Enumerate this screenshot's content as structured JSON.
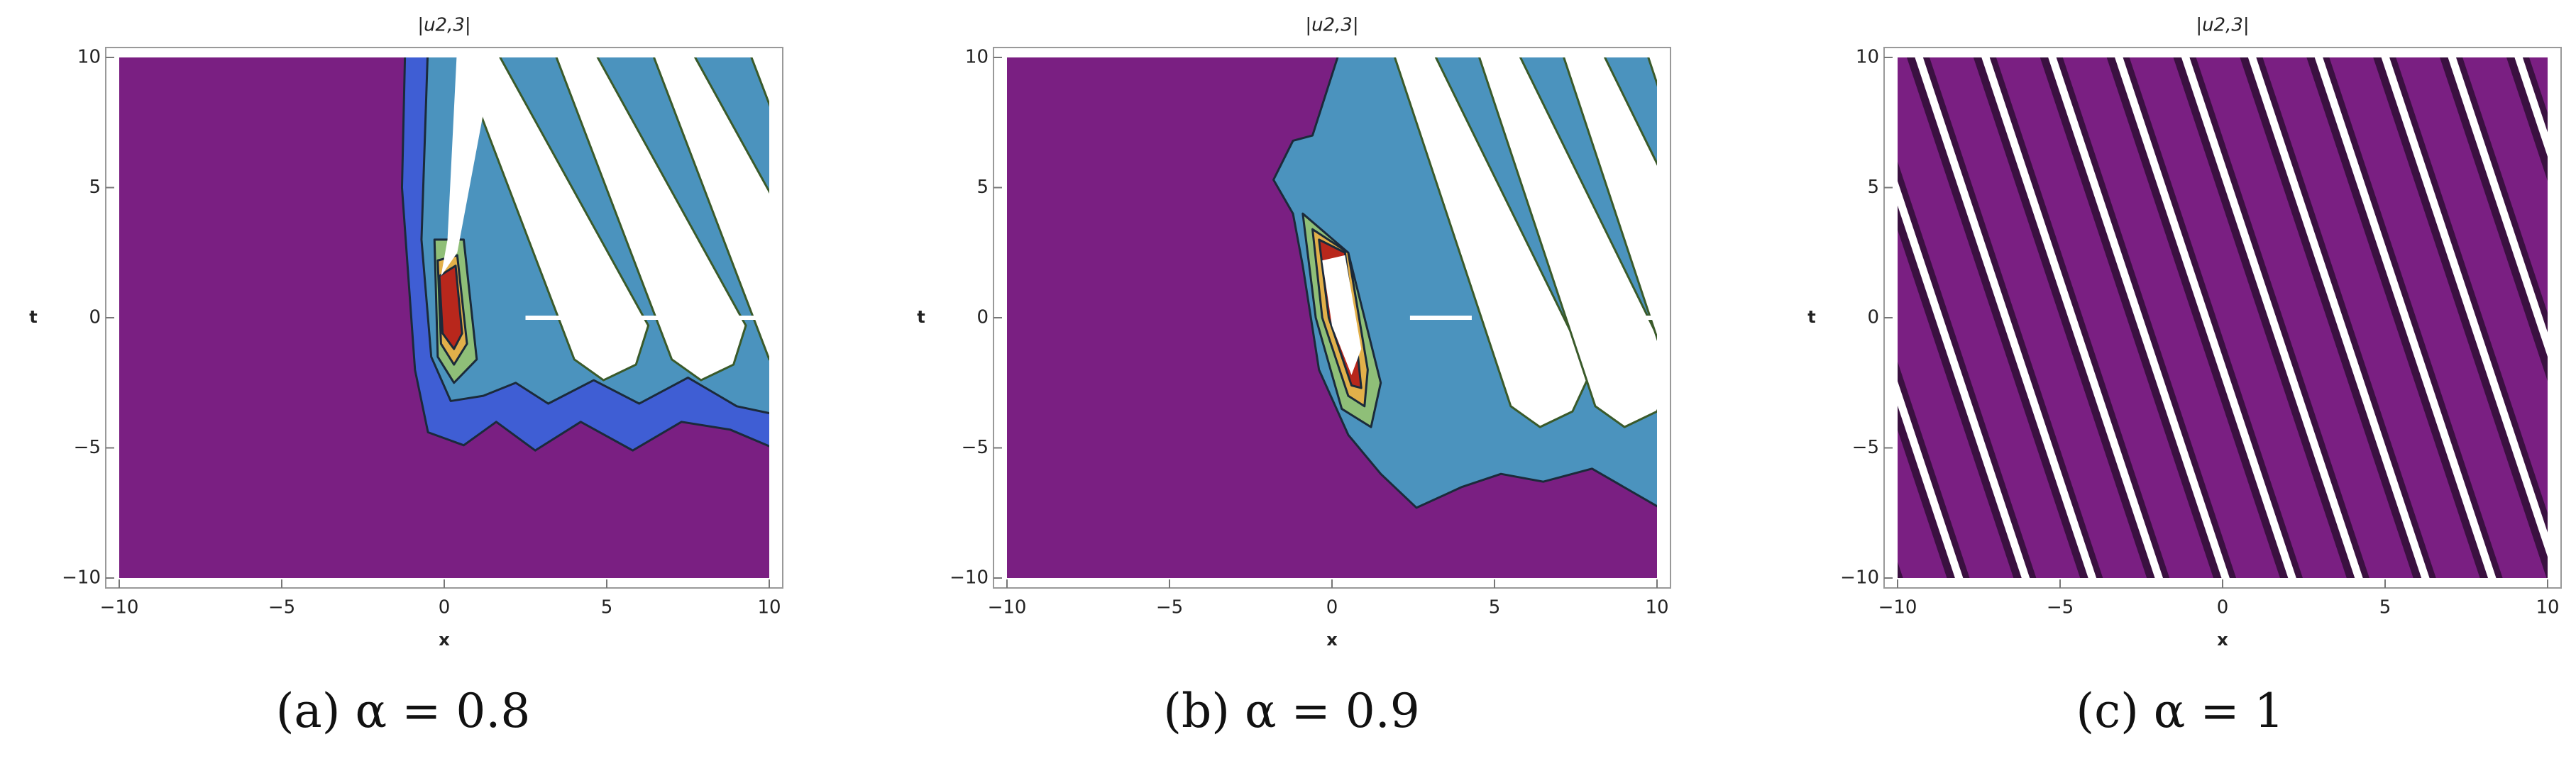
{
  "chart_data": [
    {
      "type": "contour",
      "title": "|u2,3|",
      "xlabel": "x",
      "ylabel": "t",
      "caption": "(a) α = 0.8",
      "xlim": [
        -10,
        10
      ],
      "ylim": [
        -10,
        10
      ],
      "xticks": [
        {
          "value": -10,
          "label": "−10"
        },
        {
          "value": -5,
          "label": "−5"
        },
        0,
        5,
        10
      ],
      "yticks": [
        {
          "value": -10,
          "label": "−10"
        },
        {
          "value": -5,
          "label": "−5"
        },
        0,
        5,
        10
      ],
      "colors": [
        "#7a1f82",
        "#3f5ed4",
        "#4b93be",
        "#8fbf78",
        "#e2b04a",
        "#b8271c",
        "#ffffff"
      ]
    },
    {
      "type": "contour",
      "title": "|u2,3|",
      "xlabel": "x",
      "ylabel": "t",
      "caption": "(b) α = 0.9",
      "xlim": [
        -10,
        10
      ],
      "ylim": [
        -10,
        10
      ],
      "xticks": [
        {
          "value": -10,
          "label": "−10"
        },
        {
          "value": -5,
          "label": "−5"
        },
        0,
        5,
        10
      ],
      "yticks": [
        {
          "value": -10,
          "label": "−10"
        },
        {
          "value": -5,
          "label": "−5"
        },
        0,
        5,
        10
      ],
      "colors": [
        "#7a1f82",
        "#4b93be",
        "#8fbf78",
        "#e2b04a",
        "#b8271c",
        "#ffffff"
      ]
    },
    {
      "type": "stripes",
      "title": "|u2,3|",
      "xlabel": "x",
      "ylabel": "t",
      "caption": "(c) α = 1",
      "xlim": [
        -10,
        10
      ],
      "ylim": [
        -10,
        10
      ],
      "xticks": [
        {
          "value": -10,
          "label": "−10"
        },
        {
          "value": -5,
          "label": "−5"
        },
        0,
        5,
        10
      ],
      "yticks": [
        {
          "value": -10,
          "label": "−10"
        },
        {
          "value": -5,
          "label": "−5"
        },
        0,
        5,
        10
      ],
      "colors": [
        "#7a1f82",
        "#3a1040",
        "#ffffff"
      ]
    }
  ]
}
